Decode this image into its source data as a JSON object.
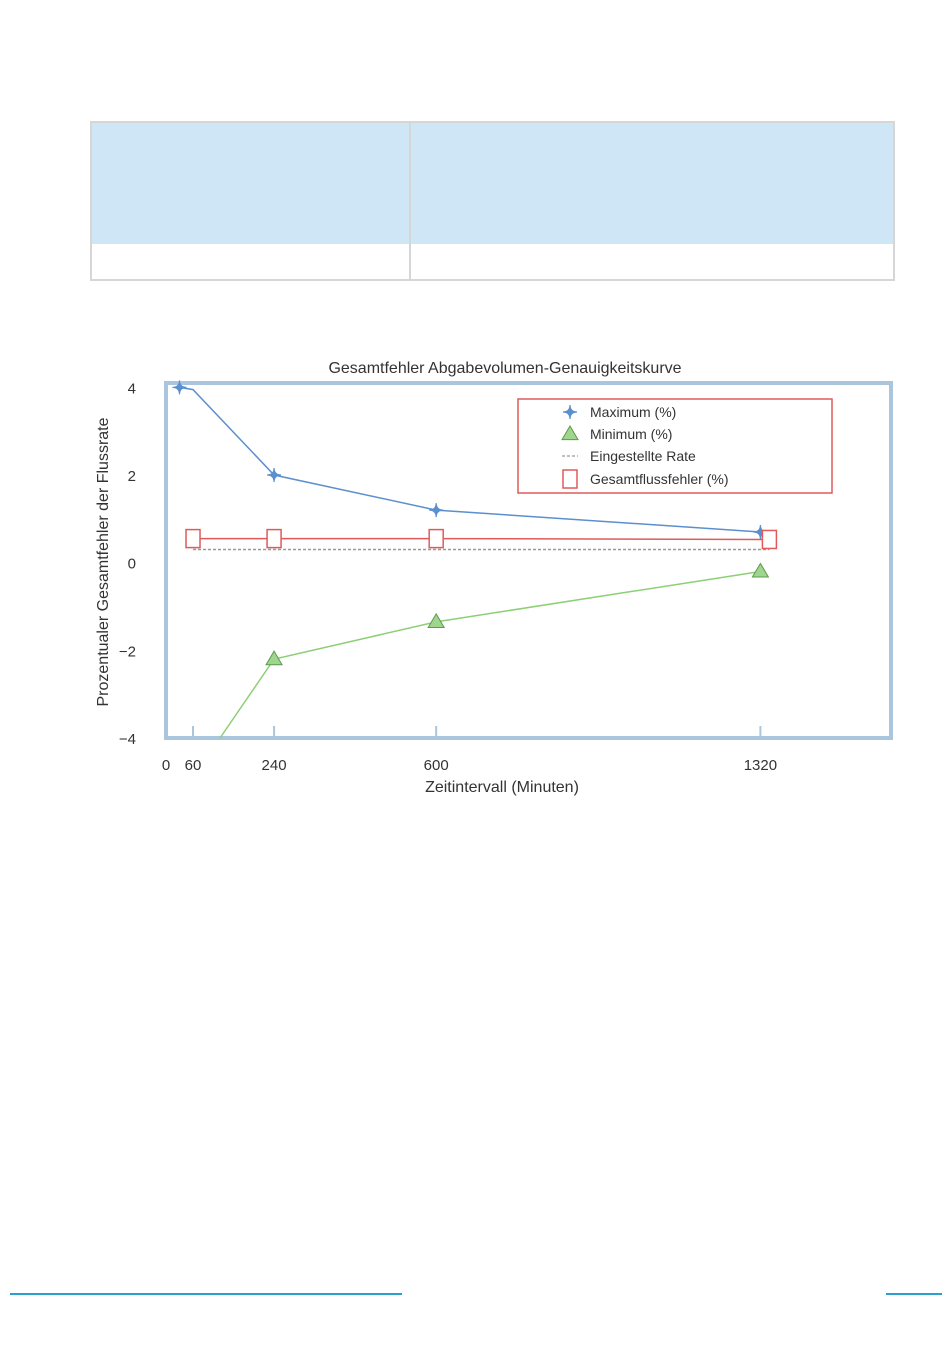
{
  "table": {
    "header": [
      "",
      ""
    ],
    "rows": [
      [
        "",
        ""
      ]
    ]
  },
  "chart_data": {
    "type": "line",
    "title": "Gesamtfehler Abgabevolumen-Genauigkeitskurve",
    "xlabel": "Zeitintervall (Minuten)",
    "ylabel": "Prozentualer Gesamtfehler der Flussrate",
    "xlim": [
      0,
      1610
    ],
    "ylim": [
      -4,
      4.1
    ],
    "x_ticks": [
      0,
      60,
      240,
      600,
      1320
    ],
    "x_tick_labels": [
      "0",
      "60",
      "240",
      "600",
      "1320"
    ],
    "y_ticks": [
      4,
      2,
      0,
      -2,
      -4
    ],
    "y_tick_labels": [
      "4",
      "2",
      "0",
      "−2",
      "−4"
    ],
    "grid": false,
    "legend_position": "top-right",
    "series": [
      {
        "name": "Maximum (%)",
        "marker": "star",
        "color": "#5b8fce",
        "x": [
          30,
          60,
          240,
          600,
          1320
        ],
        "y": [
          4.0,
          3.95,
          2.0,
          1.2,
          0.7
        ],
        "marker_x": [
          30,
          240,
          600,
          1320
        ],
        "marker_y": [
          4.0,
          2.0,
          1.2,
          0.7
        ]
      },
      {
        "name": "Minimum (%)",
        "marker": "triangle",
        "color": "#8ccf74",
        "x": [
          120,
          240,
          600,
          1320
        ],
        "y": [
          -4.0,
          -2.2,
          -1.35,
          -0.2
        ],
        "marker_x": [
          240,
          600,
          1320
        ],
        "marker_y": [
          -2.2,
          -1.35,
          -0.2
        ]
      },
      {
        "name": "Eingestellte Rate",
        "marker": "none",
        "color": "#999999",
        "dashed": true,
        "x": [
          60,
          1340
        ],
        "y": [
          0.3,
          0.3
        ]
      },
      {
        "name": "Gesamtflussfehler (%)",
        "marker": "square",
        "color": "#e05a5a",
        "x": [
          60,
          240,
          600,
          1340
        ],
        "y": [
          0.55,
          0.55,
          0.55,
          0.53
        ],
        "marker_x": [
          60,
          240,
          600,
          1340
        ],
        "marker_y": [
          0.55,
          0.55,
          0.55,
          0.53
        ]
      }
    ]
  }
}
